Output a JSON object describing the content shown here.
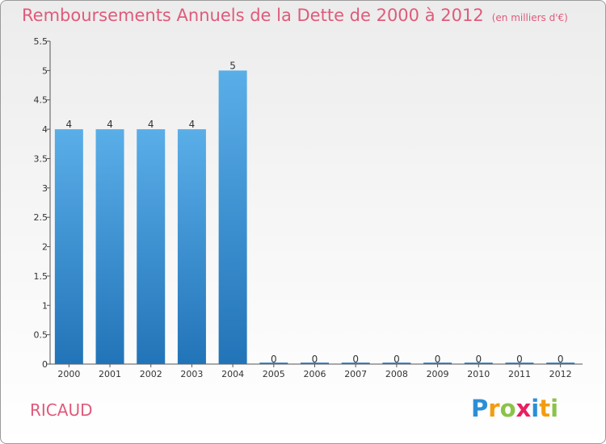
{
  "header": {
    "title": "Remboursements Annuels de la Dette de 2000 à 2012",
    "subtitle": "(en milliers d'€)"
  },
  "footer": {
    "commune": "RICAUD",
    "logo_text": "Proxiti",
    "logo_letters": [
      "P",
      "r",
      "o",
      "x",
      "i",
      "t",
      "i"
    ],
    "logo_colors": [
      "#2a8fd6",
      "#f39c12",
      "#8bc34a",
      "#e91e63",
      "#2a8fd6",
      "#f39c12",
      "#8bc34a"
    ]
  },
  "chart_data": {
    "type": "bar",
    "title": "Remboursements Annuels de la Dette de 2000 à 2012",
    "subtitle": "(en milliers d'€)",
    "categories": [
      "2000",
      "2001",
      "2002",
      "2003",
      "2004",
      "2005",
      "2006",
      "2007",
      "2008",
      "2009",
      "2010",
      "2011",
      "2012"
    ],
    "values": [
      4,
      4,
      4,
      4,
      5,
      0,
      0,
      0,
      0,
      0,
      0,
      0,
      0
    ],
    "data_labels": [
      "4",
      "4",
      "4",
      "4",
      "5",
      "0",
      "0",
      "0",
      "0",
      "0",
      "0",
      "0",
      "0"
    ],
    "y_ticks": [
      0,
      0.5,
      1,
      1.5,
      2,
      2.5,
      3,
      3.5,
      4,
      4.5,
      5,
      5.5
    ],
    "y_tick_labels": [
      "0",
      "0.5",
      "1",
      "1.5",
      "2",
      "2.5",
      "3",
      "3.5",
      "4",
      "4.5",
      "5",
      "5.5"
    ],
    "ylim": [
      0,
      5.5
    ],
    "grid": false,
    "legend": "none",
    "bar_color": "#3d8fd6"
  }
}
